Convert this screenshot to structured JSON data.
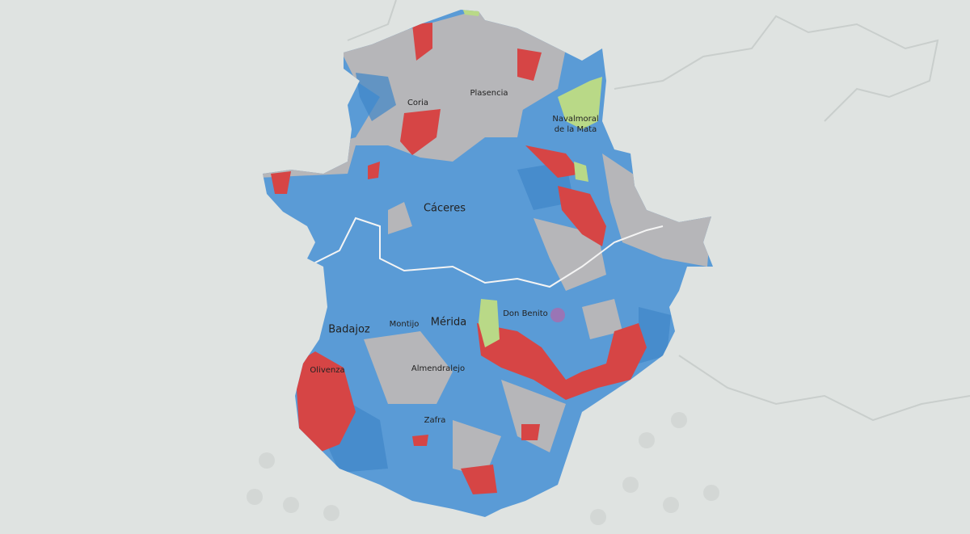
{
  "map": {
    "labels": [
      "Coria",
      "Plasencia",
      "Navalmoral",
      "de la Mata",
      "Cáceres",
      "Badajoz",
      "Montijo",
      "Mérida",
      "Don Benito",
      "Olivenza",
      "Almendralejo",
      "Zafra"
    ]
  }
}
